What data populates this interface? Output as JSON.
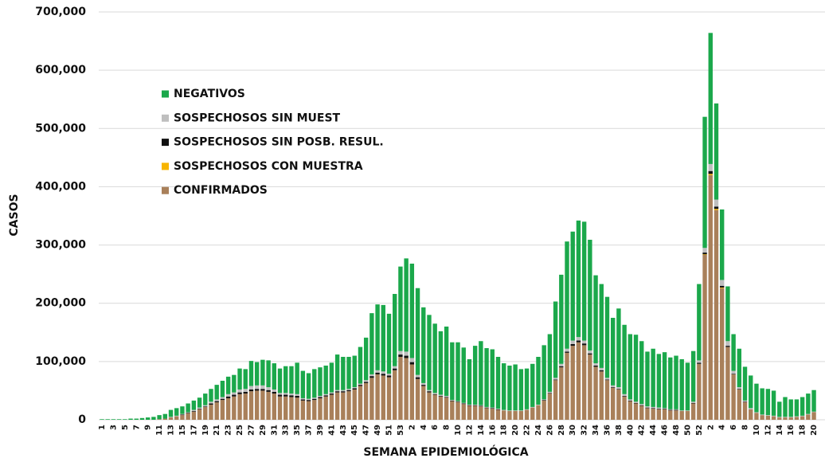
{
  "chart_data": {
    "type": "stacked_bar",
    "y_label": "CASOS",
    "x_label": "SEMANA EPIDEMIOLÓGICA",
    "categories": [
      "1",
      null,
      "3",
      null,
      "5",
      null,
      "7",
      null,
      "9",
      null,
      "11",
      null,
      "13",
      null,
      "15",
      null,
      "17",
      null,
      "19",
      null,
      "21",
      null,
      "23",
      null,
      "25",
      null,
      "27",
      null,
      "29",
      null,
      "31",
      null,
      "33",
      null,
      "35",
      null,
      "37",
      null,
      "39",
      null,
      "41",
      null,
      "43",
      null,
      "45",
      null,
      "47",
      null,
      "49",
      null,
      "51",
      null,
      "53",
      null,
      "2",
      null,
      "4",
      null,
      "6",
      null,
      "8",
      null,
      "10",
      null,
      "12",
      null,
      "14",
      null,
      "16",
      null,
      "18",
      null,
      "20",
      null,
      "22",
      null,
      "24",
      null,
      "26",
      null,
      "28",
      null,
      "30",
      null,
      "32",
      null,
      "34",
      null,
      "36",
      null,
      "38",
      null,
      "40",
      null,
      "42",
      null,
      "44",
      null,
      "46",
      null,
      "48",
      null,
      "50",
      null,
      "52",
      null,
      "2",
      null,
      "4",
      null,
      "6",
      null,
      "8",
      null,
      "10",
      null,
      "12",
      null,
      "14",
      null,
      "16",
      null,
      "18",
      null,
      "20"
    ],
    "series": [
      {
        "name": "NEGATIVOS",
        "color": "#1ba84b",
        "values": [
          1000,
          1000,
          1000,
          1000,
          1000,
          2000,
          2000,
          3000,
          4000,
          5000,
          7000,
          8000,
          12000,
          13000,
          13000,
          15000,
          16000,
          17000,
          20000,
          22000,
          25000,
          28000,
          30000,
          30000,
          36000,
          34000,
          43000,
          40000,
          44000,
          46000,
          45000,
          42000,
          46000,
          47000,
          54000,
          47000,
          44000,
          49000,
          49000,
          49000,
          51000,
          61000,
          57000,
          55000,
          54000,
          63000,
          73000,
          105000,
          113000,
          114000,
          103000,
          124000,
          145000,
          160000,
          162000,
          149000,
          130000,
          129000,
          119000,
          109000,
          119000,
          99000,
          101000,
          95000,
          78000,
          101000,
          110000,
          101000,
          100000,
          89000,
          80000,
          77000,
          79000,
          71000,
          70000,
          74000,
          82000,
          93000,
          99000,
          131000,
          153000,
          184000,
          187000,
          200000,
          204000,
          190000,
          151000,
          144000,
          139000,
          116000,
          135000,
          119000,
          112000,
          115000,
          108000,
          94000,
          100000,
          92000,
          96000,
          89000,
          92000,
          88000,
          82000,
          87000,
          131000,
          225000,
          225000,
          165000,
          121000,
          94000,
          63000,
          66000,
          58000,
          56000,
          49000,
          45000,
          45000,
          43000,
          26000,
          34000,
          30000,
          29000,
          32000,
          35000,
          37000
        ]
      },
      {
        "name": "SOSPECHOSOS SIN MUEST",
        "color": "#bfbfbf",
        "values": [
          0,
          0,
          0,
          0,
          0,
          0,
          0,
          0,
          0,
          0,
          0,
          0,
          1000,
          1000,
          1000,
          1000,
          2000,
          2000,
          2000,
          3000,
          3000,
          3000,
          4000,
          4000,
          5000,
          5000,
          6000,
          6000,
          6000,
          5000,
          4000,
          3000,
          3000,
          3000,
          3000,
          2000,
          2000,
          2000,
          2000,
          2000,
          2000,
          2000,
          2000,
          2000,
          2000,
          2000,
          3000,
          3000,
          4000,
          4000,
          3000,
          4000,
          6000,
          7000,
          7000,
          4000,
          3000,
          2000,
          2000,
          2000,
          2000,
          1000,
          1000,
          1000,
          1000,
          1000,
          1000,
          1000,
          1000,
          1000,
          1000,
          1000,
          1000,
          1000,
          1000,
          1000,
          1000,
          1000,
          2000,
          3000,
          4000,
          5000,
          6000,
          6000,
          5000,
          5000,
          4000,
          4000,
          3000,
          3000,
          3000,
          3000,
          2000,
          2000,
          2000,
          2000,
          2000,
          2000,
          1000,
          1000,
          1000,
          1000,
          1000,
          2000,
          4000,
          8000,
          12000,
          12000,
          10000,
          8000,
          5000,
          3000,
          2000,
          2000,
          1000,
          1000,
          1000,
          1000,
          1000,
          1000,
          1000,
          1000,
          1000,
          1000,
          1000
        ]
      },
      {
        "name": "SOSPECHOSOS SIN POSB. RESUL.",
        "color": "#111111",
        "values": [
          0,
          0,
          0,
          0,
          0,
          0,
          0,
          0,
          0,
          0,
          0,
          0,
          0,
          0,
          1000,
          1000,
          1000,
          1000,
          1000,
          2000,
          2000,
          2000,
          3000,
          3000,
          3000,
          3000,
          3000,
          3000,
          3000,
          3000,
          3000,
          3000,
          3000,
          3000,
          3000,
          2000,
          2000,
          2000,
          2000,
          2000,
          2000,
          2000,
          2000,
          2000,
          2000,
          2000,
          2000,
          3000,
          3000,
          3000,
          3000,
          3000,
          4000,
          4000,
          4000,
          3000,
          2000,
          2000,
          1000,
          1000,
          1000,
          1000,
          1000,
          1000,
          1000,
          1000,
          1000,
          1000,
          1000,
          1000,
          0,
          0,
          0,
          0,
          0,
          0,
          0,
          1000,
          1000,
          1000,
          2000,
          2000,
          3000,
          3000,
          3000,
          2000,
          2000,
          2000,
          1000,
          1000,
          1000,
          1000,
          1000,
          1000,
          1000,
          1000,
          1000,
          1000,
          1000,
          1000,
          1000,
          0,
          0,
          1000,
          2000,
          3000,
          5000,
          4000,
          3000,
          2000,
          1000,
          1000,
          1000,
          0,
          0,
          0,
          0,
          0,
          0,
          0,
          0,
          0,
          0,
          0,
          0
        ]
      },
      {
        "name": "SOSPECHOSOS CON MUESTRA",
        "color": "#f7b500",
        "values": [
          0,
          0,
          0,
          0,
          0,
          0,
          0,
          0,
          0,
          0,
          0,
          0,
          0,
          0,
          0,
          0,
          0,
          0,
          0,
          0,
          0,
          0,
          0,
          0,
          0,
          0,
          0,
          0,
          0,
          0,
          0,
          0,
          0,
          0,
          0,
          0,
          0,
          0,
          0,
          0,
          0,
          0,
          0,
          0,
          0,
          0,
          0,
          0,
          0,
          0,
          0,
          0,
          0,
          0,
          0,
          0,
          0,
          0,
          0,
          0,
          0,
          0,
          0,
          0,
          0,
          0,
          0,
          0,
          0,
          0,
          0,
          0,
          0,
          0,
          0,
          0,
          0,
          0,
          0,
          0,
          0,
          0,
          0,
          0,
          0,
          0,
          0,
          0,
          0,
          0,
          0,
          0,
          0,
          0,
          0,
          0,
          0,
          0,
          0,
          0,
          0,
          0,
          0,
          0,
          0,
          1000,
          2000,
          2000,
          1000,
          0,
          0,
          0,
          0,
          0,
          0,
          0,
          0,
          0,
          0,
          0,
          0,
          0,
          0,
          0,
          0
        ]
      },
      {
        "name": "CONFIRMADOS",
        "color": "#a9805a",
        "values": [
          0,
          0,
          0,
          0,
          0,
          0,
          0,
          0,
          0,
          0,
          1000,
          2000,
          4000,
          6000,
          8000,
          11000,
          14000,
          18000,
          22000,
          26000,
          30000,
          34000,
          37000,
          40000,
          44000,
          45000,
          49000,
          50000,
          50000,
          48000,
          45000,
          40000,
          40000,
          39000,
          38000,
          33000,
          32000,
          34000,
          37000,
          40000,
          43000,
          47000,
          47000,
          49000,
          52000,
          58000,
          63000,
          72000,
          78000,
          76000,
          73000,
          85000,
          108000,
          106000,
          95000,
          70000,
          58000,
          47000,
          43000,
          40000,
          38000,
          32000,
          30000,
          27000,
          24000,
          24000,
          23000,
          20000,
          19000,
          17000,
          16000,
          15000,
          15000,
          15000,
          17000,
          21000,
          25000,
          33000,
          45000,
          68000,
          90000,
          115000,
          127000,
          133000,
          128000,
          112000,
          91000,
          83000,
          68000,
          55000,
          52000,
          40000,
          32000,
          28000,
          24000,
          20000,
          19000,
          18000,
          18000,
          16000,
          16000,
          15000,
          15000,
          28000,
          96000,
          283000,
          420000,
          360000,
          226000,
          125000,
          78000,
          52000,
          30000,
          18000,
          12000,
          8000,
          7000,
          6000,
          4000,
          4000,
          4000,
          5000,
          6000,
          9000,
          13000
        ]
      }
    ],
    "ylim": [
      0,
      700000
    ],
    "yticks": [
      0,
      {
        "value": 100000,
        "label": "100,000"
      },
      {
        "value": 200000,
        "label": "200,000"
      },
      {
        "value": 300000,
        "label": "300,000"
      },
      {
        "value": 400000,
        "label": "400,000"
      },
      {
        "value": 500000,
        "label": "500,000"
      },
      {
        "value": 600000,
        "label": "600,000"
      },
      {
        "value": 700000,
        "label": "700,000"
      }
    ],
    "grid": true,
    "legend": "upper left"
  }
}
